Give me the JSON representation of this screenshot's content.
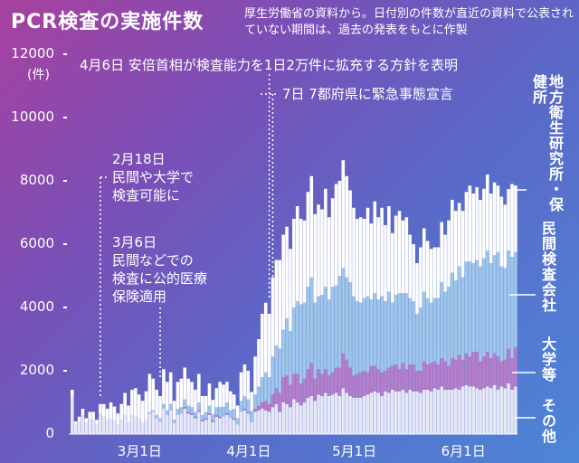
{
  "header": {
    "title": "PCR検査の実施件数",
    "subtitle": "厚生労働省の資料から。日付別の件数が直近の資料で公表されていない期間は、過去の発表をもとに作製"
  },
  "annotations": {
    "apr6": "4月6日 安倍首相が検査能力を1日2万件に拡充する方針を表明",
    "apr7": "7日 7都府県に緊急事態宣言",
    "feb18_date": "2月18日",
    "feb18_line1": "民間や大学で",
    "feb18_line2": "検査可能に",
    "mar6_date": "3月6日",
    "mar6_line1": "民間などでの",
    "mar6_line2": "検査に公的医療",
    "mar6_line3": "保険適用"
  },
  "legend": {
    "hokenjo": "地方衛生研究所・保健所",
    "minkan": "民間検査会社",
    "daigaku": "大学等",
    "sonota": "その他"
  },
  "colors": {
    "hokenjo": "#ffffff",
    "minkan": "#9fc6ea",
    "daigaku": "#b57ecb",
    "sonota": "#e7e8f7"
  },
  "chart_data": {
    "type": "bar",
    "stacked": true,
    "title": "PCR検査の実施件数",
    "ylabel": "(件)",
    "ylim": [
      0,
      12000
    ],
    "yticks": [
      0,
      2000,
      4000,
      6000,
      8000,
      10000,
      12000
    ],
    "ytick_labels": [
      "0",
      "2000",
      "4000",
      "6000",
      "8000",
      "10000",
      "12000"
    ],
    "x_tick_labels": [
      "3月1日",
      "4月1日",
      "5月1日",
      "6月1日"
    ],
    "x_tick_index": [
      20,
      51,
      81,
      112
    ],
    "day_start": "2月10日",
    "series": [
      {
        "name": "その他",
        "key": "sonota",
        "values": [
          1200,
          300,
          400,
          600,
          350,
          500,
          450,
          300,
          650,
          550,
          450,
          500,
          420,
          300,
          450,
          600,
          350,
          600,
          550,
          500,
          350,
          450,
          650,
          700,
          500,
          400,
          800,
          600,
          750,
          350,
          600,
          650,
          800,
          650,
          600,
          500,
          700,
          400,
          450,
          600,
          380,
          550,
          500,
          560,
          600,
          500,
          450,
          300,
          700,
          750,
          650,
          380,
          700,
          750,
          800,
          750,
          700,
          850,
          950,
          700,
          1000,
          950,
          850,
          1100,
          1000,
          900,
          1000,
          1150,
          1200,
          1050,
          1250,
          1200,
          1300,
          1200,
          1250,
          1300,
          1200,
          1450,
          1300,
          1200,
          1150,
          1150,
          1150,
          1200,
          1250,
          1300,
          1350,
          1300,
          1200,
          1350,
          1300,
          1400,
          1350,
          1350,
          1400,
          1300,
          1400,
          1350,
          1350,
          1300,
          1400,
          1400,
          1350,
          1450,
          1400,
          1500,
          1400,
          1400,
          1400,
          1450,
          1400,
          1500,
          1550,
          1500,
          1500,
          1450,
          1400,
          1450,
          1500,
          1450,
          1550,
          1400,
          1500,
          1450,
          1600,
          1400,
          1500
        ]
      },
      {
        "name": "大学等",
        "key": "daigaku",
        "values": [
          0,
          0,
          0,
          0,
          0,
          0,
          0,
          0,
          0,
          0,
          0,
          0,
          0,
          0,
          0,
          0,
          0,
          0,
          0,
          0,
          0,
          0,
          0,
          0,
          0,
          0,
          0,
          0,
          0,
          0,
          0,
          0,
          50,
          50,
          50,
          50,
          50,
          50,
          50,
          50,
          50,
          50,
          50,
          0,
          50,
          0,
          50,
          0,
          0,
          50,
          50,
          0,
          100,
          150,
          200,
          300,
          250,
          400,
          500,
          600,
          800,
          900,
          700,
          800,
          900,
          700,
          750,
          900,
          1050,
          700,
          800,
          700,
          750,
          650,
          700,
          800,
          900,
          1100,
          1050,
          900,
          700,
          750,
          800,
          800,
          700,
          850,
          800,
          750,
          750,
          650,
          800,
          750,
          850,
          700,
          850,
          750,
          800,
          850,
          650,
          700,
          900,
          800,
          900,
          850,
          800,
          900,
          900,
          750,
          1000,
          900,
          1100,
          850,
          1000,
          950,
          1100,
          1150,
          900,
          1000,
          1100,
          950,
          1000,
          1050,
          800,
          900,
          1100,
          1000,
          1250
        ]
      },
      {
        "name": "民間検査会社",
        "key": "minkan",
        "values": [
          0,
          0,
          0,
          0,
          0,
          0,
          0,
          0,
          0,
          0,
          0,
          0,
          0,
          0,
          0,
          0,
          0,
          0,
          0,
          0,
          0,
          0,
          50,
          50,
          100,
          100,
          150,
          150,
          200,
          100,
          200,
          200,
          250,
          200,
          200,
          150,
          250,
          150,
          200,
          250,
          200,
          250,
          300,
          300,
          350,
          250,
          300,
          200,
          350,
          400,
          400,
          350,
          450,
          600,
          800,
          900,
          850,
          1200,
          1350,
          1400,
          1500,
          1800,
          1700,
          2100,
          2300,
          2500,
          2400,
          2600,
          2700,
          2400,
          2300,
          2500,
          2600,
          2400,
          2700,
          2600,
          2900,
          2700,
          2600,
          2700,
          2500,
          2300,
          2200,
          2300,
          2400,
          2100,
          2300,
          2200,
          2400,
          2200,
          2400,
          2000,
          2200,
          2400,
          2200,
          2400,
          2100,
          2000,
          1800,
          2000,
          2200,
          2100,
          1900,
          2000,
          2100,
          2400,
          2200,
          2500,
          2700,
          2500,
          2800,
          2600,
          2900,
          3000,
          2800,
          2900,
          3000,
          3100,
          3200,
          3000,
          3100,
          3300,
          3000,
          2900,
          3100,
          3200,
          3000
        ]
      },
      {
        "name": "地方衛生研究所・保健所",
        "key": "hokenjo",
        "values": [
          200,
          100,
          150,
          200,
          150,
          200,
          250,
          150,
          300,
          400,
          350,
          500,
          450,
          350,
          500,
          700,
          550,
          800,
          900,
          750,
          700,
          900,
          1200,
          1000,
          800,
          700,
          1100,
          900,
          1000,
          600,
          850,
          900,
          1000,
          850,
          800,
          700,
          900,
          600,
          500,
          700,
          450,
          600,
          800,
          700,
          650,
          600,
          450,
          400,
          900,
          1000,
          900,
          600,
          1200,
          1500,
          2000,
          2200,
          2000,
          2500,
          2700,
          2800,
          3000,
          2900,
          2600,
          2800,
          3000,
          2700,
          2600,
          3000,
          3200,
          2800,
          2900,
          2700,
          3100,
          2600,
          2800,
          3200,
          3000,
          3400,
          3200,
          2900,
          2800,
          2600,
          2700,
          2500,
          2800,
          2400,
          2900,
          2600,
          2800,
          2400,
          2700,
          2200,
          2500,
          2600,
          2300,
          2400,
          2000,
          1800,
          1600,
          1900,
          2000,
          1800,
          1700,
          1600,
          1600,
          1900,
          1800,
          2100,
          2300,
          2200,
          2000,
          2100,
          2200,
          2400,
          2200,
          2300,
          2100,
          2200,
          2400,
          2200,
          2300,
          2100,
          2200,
          2000,
          1900,
          2300,
          2100
        ]
      }
    ]
  }
}
